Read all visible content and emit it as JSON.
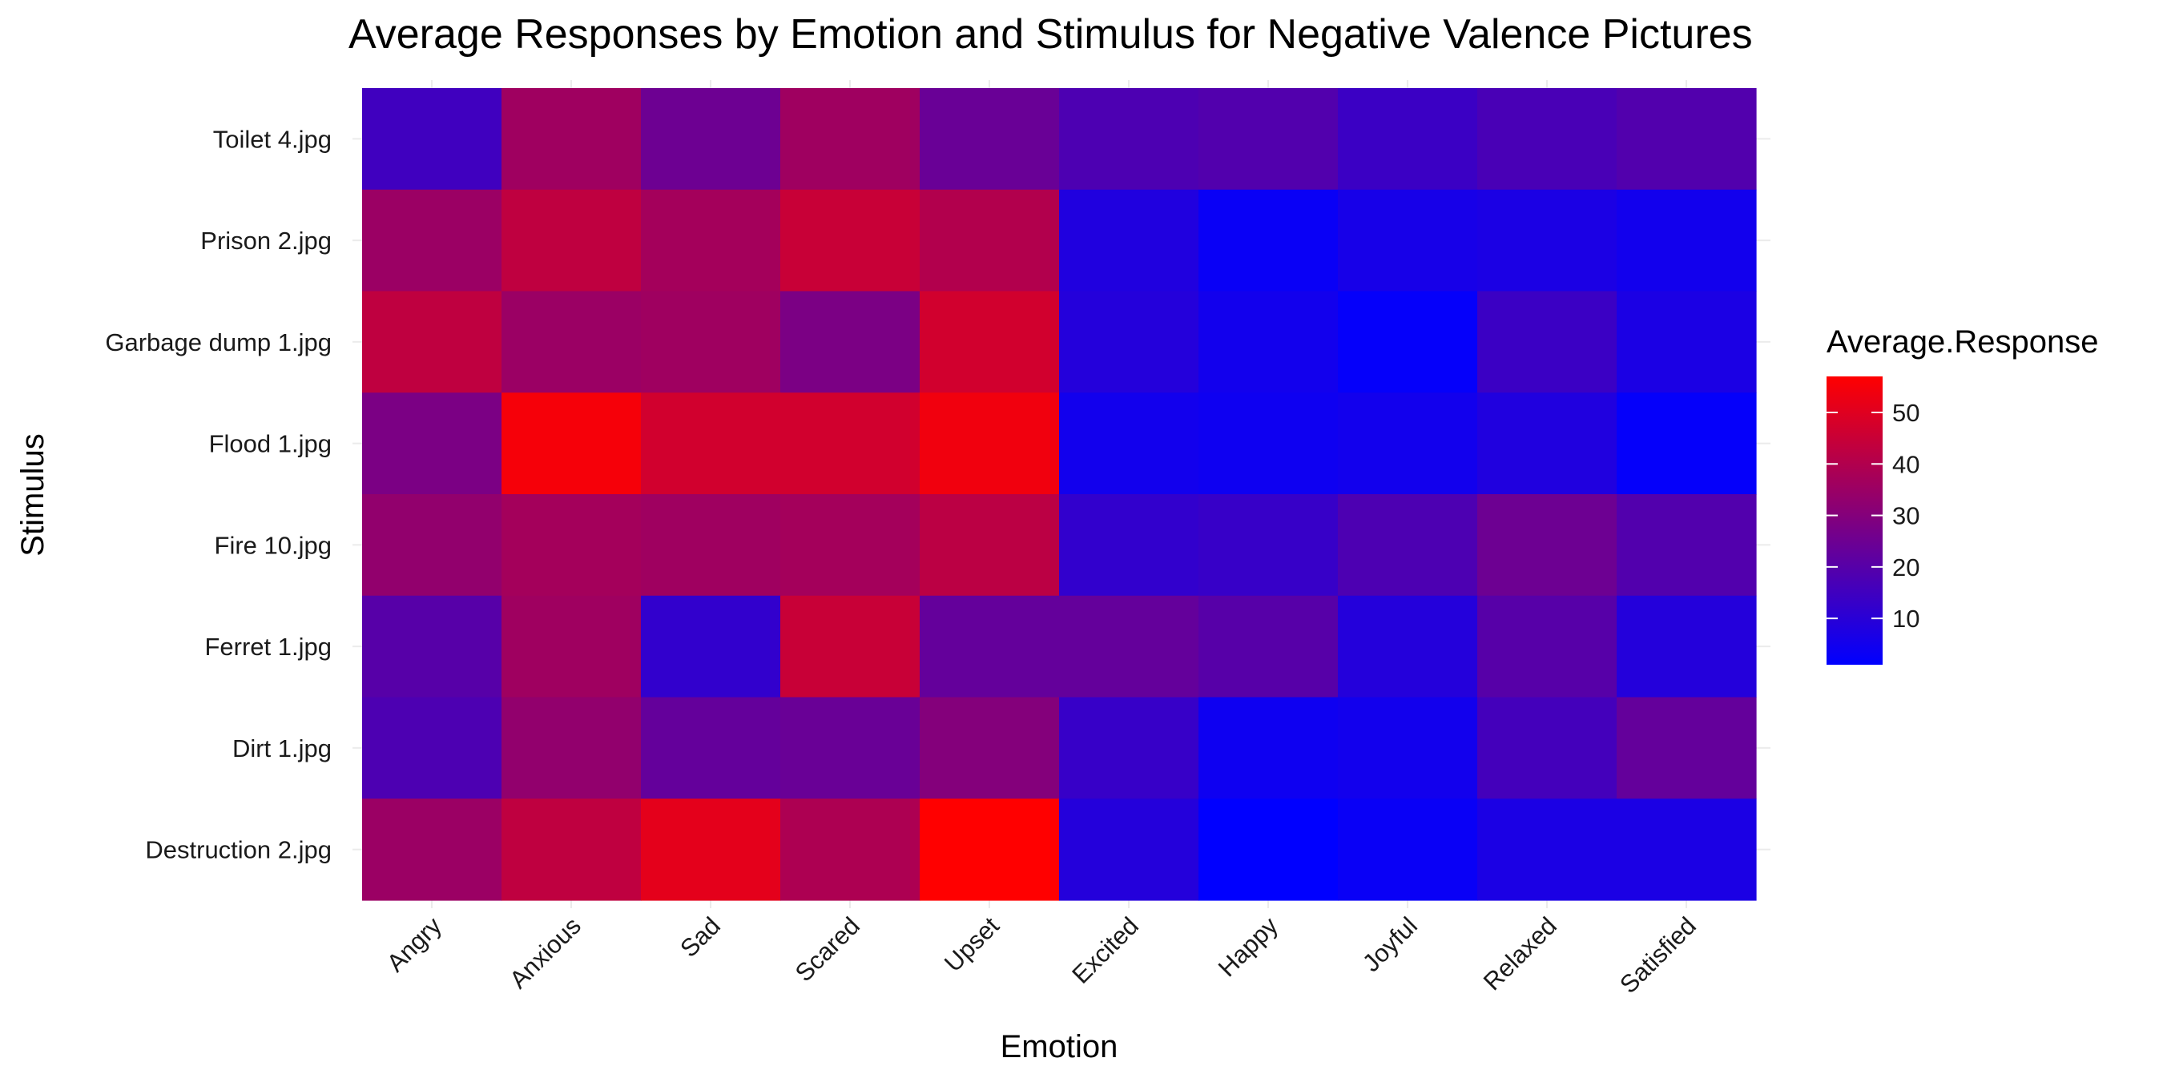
{
  "chart_data": {
    "type": "heatmap",
    "title": "Average Responses by Emotion and Stimulus for Negative Valence Pictures",
    "xlabel": "Emotion",
    "ylabel": "Stimulus",
    "x_categories": [
      "Angry",
      "Anxious",
      "Sad",
      "Scared",
      "Upset",
      "Excited",
      "Happy",
      "Joyful",
      "Relaxed",
      "Satisfied"
    ],
    "y_categories": [
      "Toilet 4.jpg",
      "Prison 2.jpg",
      "Garbage dump 1.jpg",
      "Flood 1.jpg",
      "Fire 10.jpg",
      "Ferret 1.jpg",
      "Dirt 1.jpg",
      "Destruction 2.jpg"
    ],
    "values": [
      [
        15,
        36,
        25,
        36,
        24,
        18,
        19,
        14,
        17,
        19
      ],
      [
        35,
        43,
        37,
        45,
        40,
        8,
        3,
        6,
        7,
        5
      ],
      [
        43,
        35,
        36,
        28,
        47,
        9,
        5,
        2,
        14,
        7
      ],
      [
        28,
        55,
        47,
        47,
        54,
        5,
        4,
        5,
        8,
        2
      ],
      [
        33,
        37,
        36,
        37,
        42,
        12,
        13,
        18,
        25,
        19
      ],
      [
        20,
        36,
        12,
        45,
        23,
        23,
        20,
        9,
        20,
        9
      ],
      [
        18,
        33,
        23,
        24,
        30,
        13,
        4,
        5,
        16,
        23
      ],
      [
        35,
        43,
        51,
        39,
        57,
        9,
        1,
        3,
        7,
        7
      ]
    ],
    "color_scale": {
      "low": "#0000ff",
      "high": "#ff0000",
      "min": 1,
      "max": 57
    },
    "legend": {
      "title": "Average.Response",
      "ticks": [
        10,
        20,
        30,
        40,
        50
      ],
      "tick_labels": [
        "10",
        "20",
        "30",
        "40",
        "50"
      ],
      "position": "right"
    },
    "grid": true
  }
}
